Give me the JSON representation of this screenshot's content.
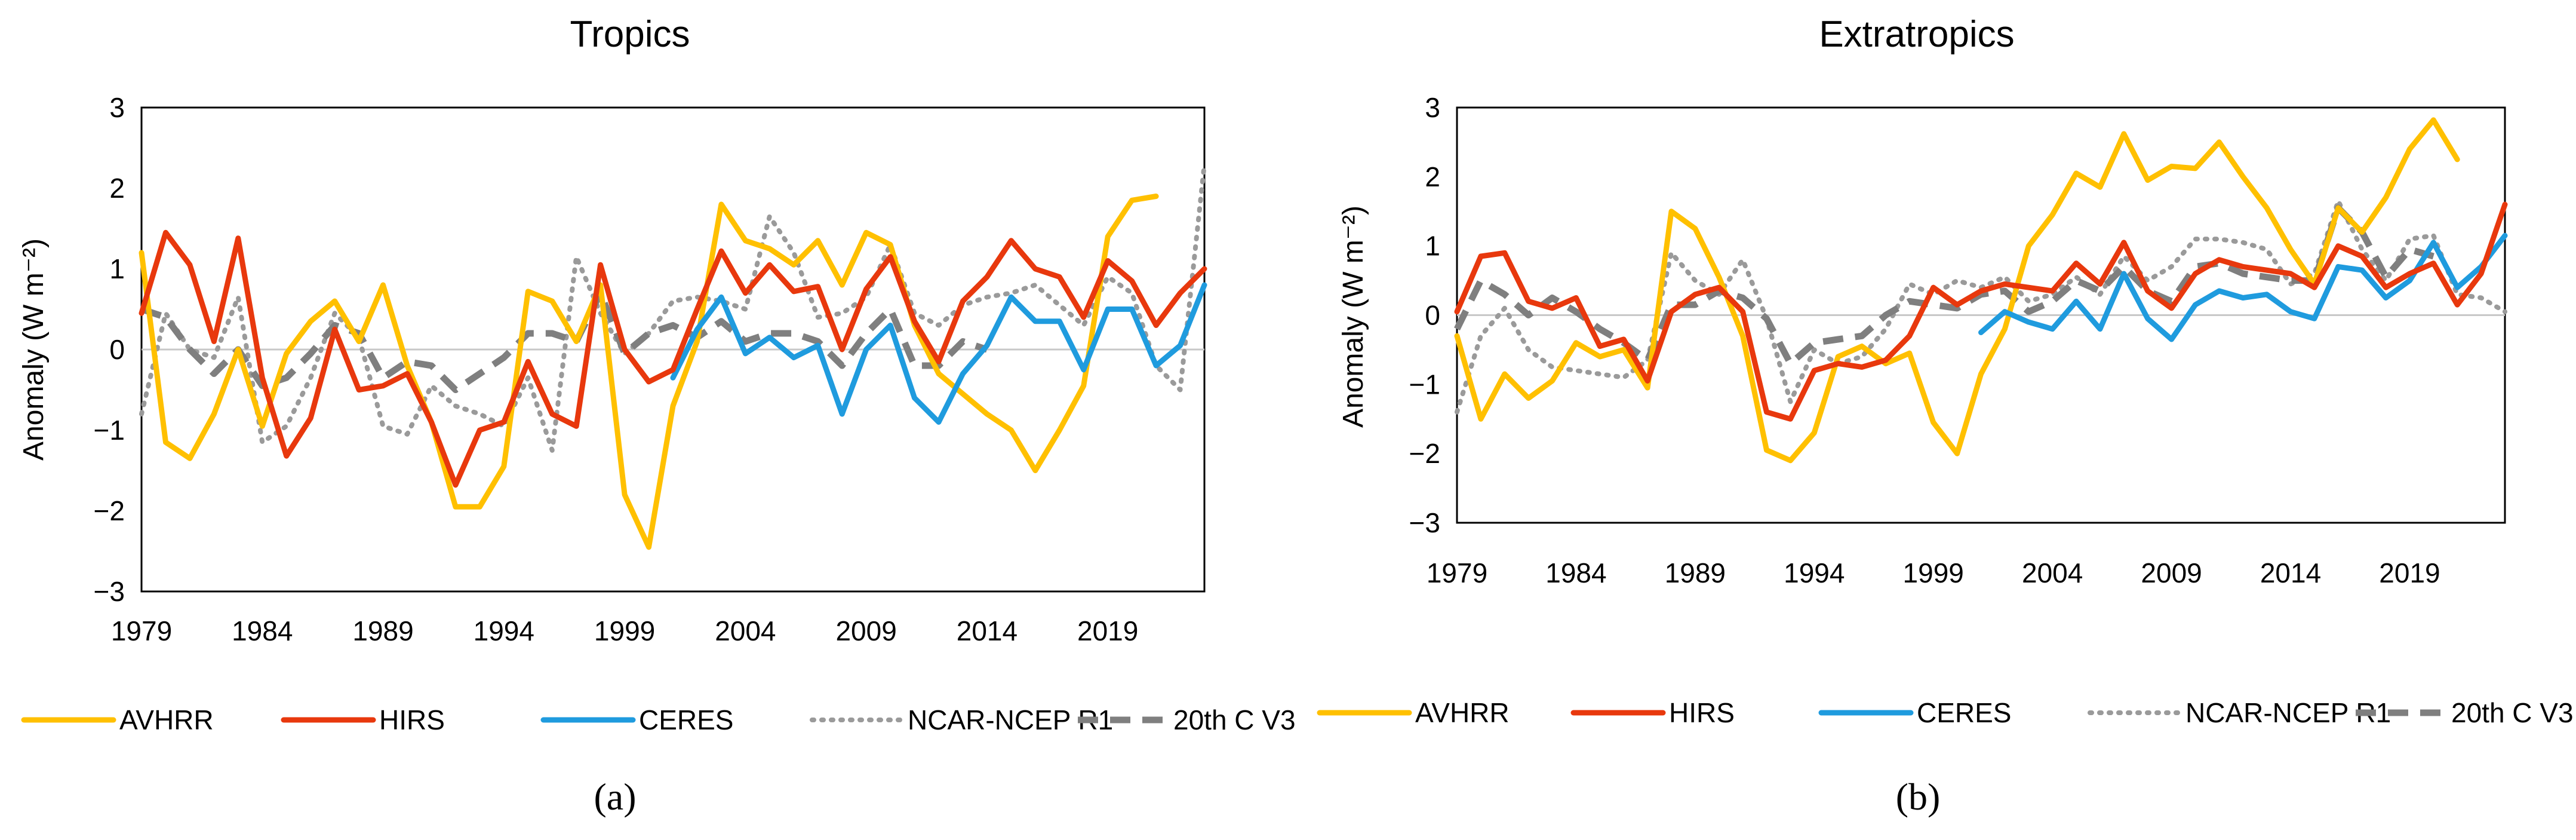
{
  "figure": {
    "panel_labels": [
      "(a)",
      "(b)"
    ],
    "legend_labels": [
      "AVHRR",
      "HIRS",
      "CERES",
      "NCAR-NCEP R1",
      "20th C V3"
    ]
  },
  "colors": {
    "AVHRR": "#FFC000",
    "HIRS": "#E8380D",
    "CERES": "#1F9BDE",
    "NCAR-NCEP R1": "#9A9A9A",
    "20th C V3": "#7F7F7F"
  },
  "chart_data": [
    {
      "type": "line",
      "title": "Tropics",
      "panel_label": "(a)",
      "xlabel": "",
      "ylabel": "Anomaly (W m⁻²)",
      "ylim": [
        -3,
        3
      ],
      "yticks": [
        "3",
        "2",
        "1",
        "0",
        "−1",
        "−2",
        "−3"
      ],
      "xlim": [
        1979,
        2023
      ],
      "xticks": [
        "1979",
        "1984",
        "1989",
        "1994",
        "1999",
        "2004",
        "2009",
        "2014",
        "2019"
      ],
      "series": [
        {
          "name": "AVHRR",
          "style": "solid",
          "x0": 1979,
          "values": [
            1.2,
            -1.15,
            -1.35,
            -0.8,
            0.0,
            -0.95,
            -0.05,
            0.35,
            0.6,
            0.1,
            0.8,
            -0.2,
            -0.9,
            -1.95,
            -1.95,
            -1.45,
            0.72,
            0.6,
            0.1,
            0.8,
            -1.8,
            -2.45,
            -0.7,
            0.1,
            1.8,
            1.35,
            1.25,
            1.05,
            1.35,
            0.8,
            1.45,
            1.3,
            0.3,
            -0.3,
            -0.55,
            -0.8,
            -1.0,
            -1.5,
            -1.0,
            -0.45,
            1.4,
            1.85,
            1.9
          ]
        },
        {
          "name": "HIRS",
          "style": "solid",
          "x0": 1979,
          "values": [
            0.45,
            1.45,
            1.05,
            0.1,
            1.38,
            -0.35,
            -1.32,
            -0.85,
            0.25,
            -0.5,
            -0.45,
            -0.3,
            -0.9,
            -1.68,
            -1.0,
            -0.9,
            -0.15,
            -0.8,
            -0.95,
            1.05,
            0.0,
            -0.4,
            -0.25,
            0.5,
            1.22,
            0.7,
            1.05,
            0.72,
            0.78,
            0.0,
            0.75,
            1.15,
            0.35,
            -0.15,
            0.6,
            0.9,
            1.35,
            1.0,
            0.9,
            0.4,
            1.1,
            0.85,
            0.3,
            0.7,
            1.0
          ]
        },
        {
          "name": "CERES",
          "style": "solid",
          "x0": 2001,
          "values": [
            -0.35,
            0.25,
            0.65,
            -0.05,
            0.15,
            -0.1,
            0.05,
            -0.8,
            0.0,
            0.3,
            -0.6,
            -0.9,
            -0.3,
            0.05,
            0.65,
            0.35,
            0.35,
            -0.25,
            0.5,
            0.5,
            -0.2,
            0.05,
            0.8
          ]
        },
        {
          "name": "NCAR-NCEP R1",
          "style": "dotted",
          "x0": 1979,
          "values": [
            -0.8,
            0.45,
            0.0,
            -0.1,
            0.65,
            -1.15,
            -0.95,
            -0.35,
            0.45,
            0.15,
            -0.95,
            -1.05,
            -0.45,
            -0.7,
            -0.8,
            -0.95,
            -0.35,
            -1.25,
            1.15,
            0.45,
            -0.05,
            0.2,
            0.6,
            0.65,
            0.6,
            0.5,
            1.65,
            1.2,
            0.4,
            0.45,
            0.65,
            1.3,
            0.45,
            0.3,
            0.55,
            0.65,
            0.7,
            0.8,
            0.55,
            0.3,
            0.9,
            0.7,
            -0.2,
            -0.5,
            2.3
          ]
        },
        {
          "name": "20th C V3",
          "style": "dashed",
          "x0": 1979,
          "values": [
            0.5,
            0.4,
            0.0,
            -0.3,
            0.0,
            -0.45,
            -0.35,
            -0.05,
            0.3,
            0.2,
            -0.35,
            -0.15,
            -0.2,
            -0.5,
            -0.3,
            -0.1,
            0.2,
            0.2,
            0.1,
            0.7,
            -0.05,
            0.2,
            0.3,
            0.15,
            0.35,
            0.1,
            0.2,
            0.2,
            0.1,
            -0.2,
            0.2,
            0.5,
            -0.2,
            -0.2,
            0.1,
            0.0
          ]
        }
      ]
    },
    {
      "type": "line",
      "title": "Extratropics",
      "panel_label": "(b)",
      "xlabel": "",
      "ylabel": "Anomaly (W m⁻²)",
      "ylim": [
        -3,
        3
      ],
      "yticks": [
        "3",
        "2",
        "1",
        "0",
        "−1",
        "−2",
        "−3"
      ],
      "xlim": [
        1979,
        2023
      ],
      "xticks": [
        "1979",
        "1984",
        "1989",
        "1994",
        "1999",
        "2004",
        "2009",
        "2014",
        "2019"
      ],
      "series": [
        {
          "name": "AVHRR",
          "style": "solid",
          "x0": 1979,
          "values": [
            -0.3,
            -1.5,
            -0.85,
            -1.2,
            -0.95,
            -0.4,
            -0.6,
            -0.5,
            -1.05,
            1.5,
            1.25,
            0.55,
            -0.3,
            -1.95,
            -2.1,
            -1.7,
            -0.6,
            -0.45,
            -0.7,
            -0.55,
            -1.55,
            -2.0,
            -0.85,
            -0.2,
            1.0,
            1.45,
            2.05,
            1.85,
            2.62,
            1.95,
            2.15,
            2.12,
            2.5,
            2.0,
            1.55,
            0.95,
            0.45,
            1.55,
            1.2,
            1.7,
            2.4,
            2.82,
            2.25
          ]
        },
        {
          "name": "HIRS",
          "style": "solid",
          "x0": 1979,
          "values": [
            0.05,
            0.85,
            0.9,
            0.2,
            0.1,
            0.25,
            -0.45,
            -0.35,
            -0.95,
            0.05,
            0.3,
            0.4,
            0.05,
            -1.4,
            -1.5,
            -0.8,
            -0.7,
            -0.75,
            -0.65,
            -0.3,
            0.4,
            0.15,
            0.35,
            0.45,
            0.4,
            0.35,
            0.75,
            0.45,
            1.05,
            0.35,
            0.1,
            0.6,
            0.8,
            0.7,
            0.65,
            0.6,
            0.4,
            1.0,
            0.85,
            0.4,
            0.6,
            0.75,
            0.15,
            0.6,
            1.6
          ]
        },
        {
          "name": "CERES",
          "style": "solid",
          "x0": 2001,
          "values": [
            -0.25,
            0.05,
            -0.1,
            -0.2,
            0.2,
            -0.2,
            0.6,
            -0.05,
            -0.35,
            0.15,
            0.35,
            0.25,
            0.3,
            0.05,
            -0.05,
            0.7,
            0.65,
            0.25,
            0.5,
            1.05,
            0.4,
            0.7,
            1.15
          ]
        },
        {
          "name": "NCAR-NCEP R1",
          "style": "dotted",
          "x0": 1979,
          "values": [
            -1.4,
            -0.3,
            0.1,
            -0.5,
            -0.75,
            -0.8,
            -0.85,
            -0.9,
            -0.65,
            0.9,
            0.5,
            0.3,
            0.8,
            -0.05,
            -1.25,
            -0.5,
            -0.7,
            -0.6,
            -0.2,
            0.45,
            0.3,
            0.5,
            0.4,
            0.55,
            0.2,
            0.3,
            0.55,
            0.3,
            0.85,
            0.5,
            0.7,
            1.1,
            1.1,
            1.05,
            0.95,
            0.45,
            0.6,
            1.65,
            0.95,
            0.5,
            1.1,
            1.15,
            0.3,
            0.25,
            0.05
          ]
        },
        {
          "name": "20th C V3",
          "style": "dashed",
          "x0": 1979,
          "values": [
            -0.2,
            0.5,
            0.3,
            0.0,
            0.25,
            0.05,
            -0.2,
            -0.4,
            -0.65,
            0.15,
            0.15,
            0.35,
            0.25,
            -0.05,
            -0.7,
            -0.4,
            -0.35,
            -0.3,
            0.0,
            0.2,
            0.15,
            0.1,
            0.3,
            0.35,
            0.05,
            0.2,
            0.5,
            0.35,
            0.7,
            0.35,
            0.2,
            0.7,
            0.75,
            0.6,
            0.55,
            0.5,
            0.5,
            1.55,
            1.2,
            0.55,
            0.95,
            0.85
          ]
        }
      ]
    }
  ]
}
